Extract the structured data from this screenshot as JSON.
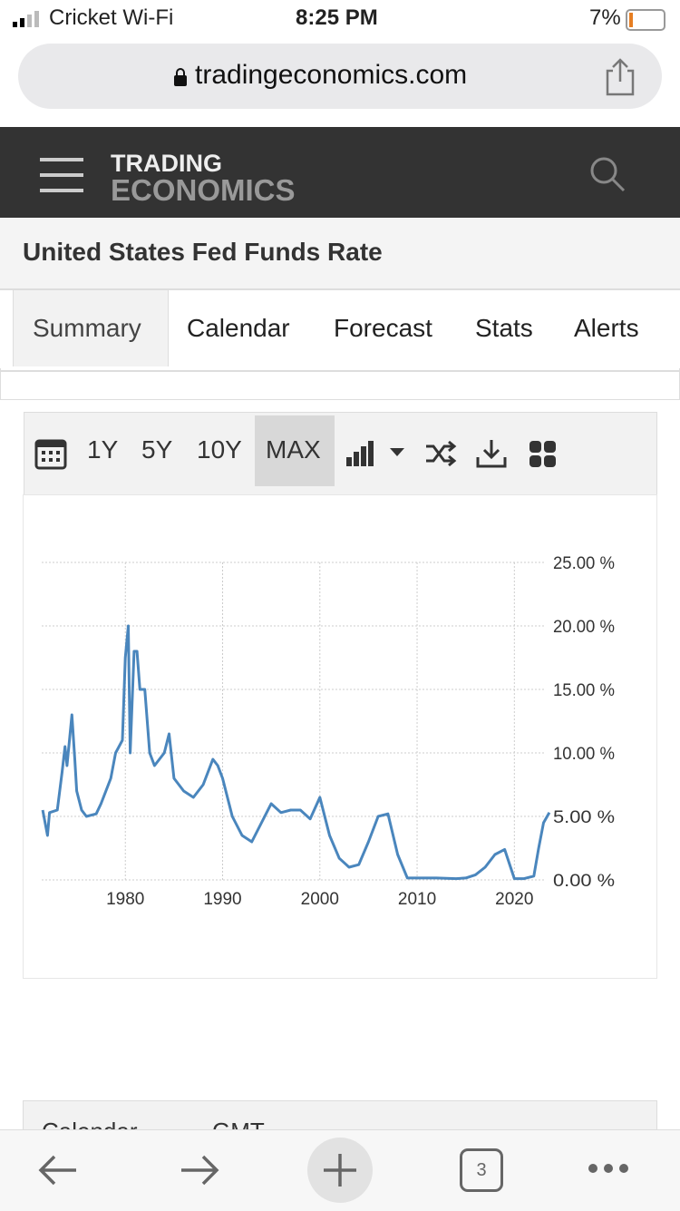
{
  "status_bar": {
    "carrier": "Cricket Wi-Fi",
    "time": "8:25 PM",
    "battery": "7%"
  },
  "browser": {
    "url": "tradingeconomics.com",
    "tab_count": "3"
  },
  "header": {
    "logo_top": "TRADING",
    "logo_bottom": "ECONOMICS"
  },
  "page_title": "United States Fed Funds Rate",
  "tabs": [
    "Summary",
    "Calendar",
    "Forecast",
    "Stats",
    "Alerts"
  ],
  "toolbar": {
    "ranges": [
      "1Y",
      "5Y",
      "10Y",
      "MAX"
    ]
  },
  "chart_data": {
    "type": "line",
    "color": "#4a86bd",
    "x": [
      1971.5,
      1972,
      1972.2,
      1973,
      1973.5,
      1973.8,
      1974,
      1974.5,
      1974.8,
      1975,
      1975.5,
      1976,
      1977,
      1977.5,
      1978,
      1978.5,
      1979,
      1979.7,
      1980,
      1980.3,
      1980.5,
      1980.9,
      1981.2,
      1981.5,
      1982,
      1982.5,
      1983,
      1984,
      1984.5,
      1985,
      1986,
      1987,
      1988,
      1989,
      1989.5,
      1990,
      1991,
      1992,
      1993,
      1994,
      1995,
      1996,
      1997,
      1998,
      1999,
      2000,
      2001,
      2002,
      2003,
      2004,
      2005,
      2006,
      2007,
      2008,
      2009,
      2010,
      2012,
      2014,
      2015,
      2016,
      2017,
      2018,
      2019,
      2020,
      2021,
      2022,
      2022.5,
      2023,
      2023.6
    ],
    "values": [
      5.5,
      3.5,
      5.3,
      5.5,
      8.5,
      10.5,
      9,
      13,
      9.5,
      7,
      5.5,
      5,
      5.2,
      6,
      7,
      8,
      10,
      11,
      17.5,
      20,
      10,
      18,
      18,
      15,
      15,
      10,
      9,
      10,
      11.5,
      8,
      7,
      6.5,
      7.5,
      9.5,
      9,
      8,
      5,
      3.5,
      3,
      4.5,
      6,
      5.3,
      5.5,
      5.5,
      4.8,
      6.5,
      3.5,
      1.7,
      1,
      1.2,
      3,
      5,
      5.2,
      2,
      0.15,
      0.15,
      0.15,
      0.1,
      0.15,
      0.4,
      1,
      2,
      2.4,
      0.1,
      0.1,
      0.3,
      2.5,
      4.5,
      5.3
    ],
    "xlim": [
      1971.4,
      2023.7
    ],
    "xticks": [
      1980,
      1990,
      2000,
      2010,
      2020
    ],
    "ylim": [
      0,
      25
    ],
    "yticks": [
      {
        "value": 0,
        "label": "0.00 %"
      },
      {
        "value": 5,
        "label": "5.00 %"
      },
      {
        "value": 10,
        "label": "10.00 %"
      },
      {
        "value": 15,
        "label": "15.00 %"
      },
      {
        "value": 20,
        "label": "20.00 %"
      },
      {
        "value": 25,
        "label": "25.00 %"
      }
    ],
    "grid": true
  },
  "next_section": {
    "headers": [
      "Calendar",
      "GMT"
    ]
  }
}
